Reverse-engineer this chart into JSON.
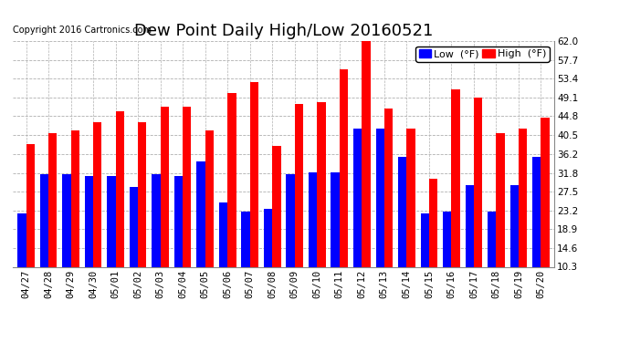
{
  "title": "Dew Point Daily High/Low 20160521",
  "copyright": "Copyright 2016 Cartronics.com",
  "legend_low": "Low  (°F)",
  "legend_high": "High  (°F)",
  "dates": [
    "04/27",
    "04/28",
    "04/29",
    "04/30",
    "05/01",
    "05/02",
    "05/03",
    "05/04",
    "05/05",
    "05/06",
    "05/07",
    "05/08",
    "05/09",
    "05/10",
    "05/11",
    "05/12",
    "05/13",
    "05/14",
    "05/15",
    "05/16",
    "05/17",
    "05/18",
    "05/19",
    "05/20"
  ],
  "low": [
    22.5,
    31.5,
    31.5,
    31.0,
    31.0,
    28.5,
    31.5,
    31.0,
    34.5,
    25.0,
    23.0,
    23.5,
    31.5,
    32.0,
    32.0,
    42.0,
    42.0,
    35.5,
    22.5,
    23.0,
    29.0,
    23.0,
    29.0,
    35.5
  ],
  "high": [
    38.5,
    41.0,
    41.5,
    43.5,
    46.0,
    43.5,
    47.0,
    47.0,
    41.5,
    50.0,
    52.5,
    38.0,
    47.5,
    48.0,
    55.5,
    62.0,
    46.5,
    42.0,
    30.5,
    51.0,
    49.0,
    41.0,
    42.0,
    44.5
  ],
  "ylim": [
    10.3,
    62.0
  ],
  "yticks": [
    10.3,
    14.6,
    18.9,
    23.2,
    27.5,
    31.8,
    36.2,
    40.5,
    44.8,
    49.1,
    53.4,
    57.7,
    62.0
  ],
  "bar_width": 0.38,
  "low_color": "#0000ff",
  "high_color": "#ff0000",
  "background_color": "#ffffff",
  "grid_color": "#b0b0b0",
  "title_fontsize": 13,
  "tick_fontsize": 7.5,
  "copyright_fontsize": 7,
  "legend_fontsize": 8
}
